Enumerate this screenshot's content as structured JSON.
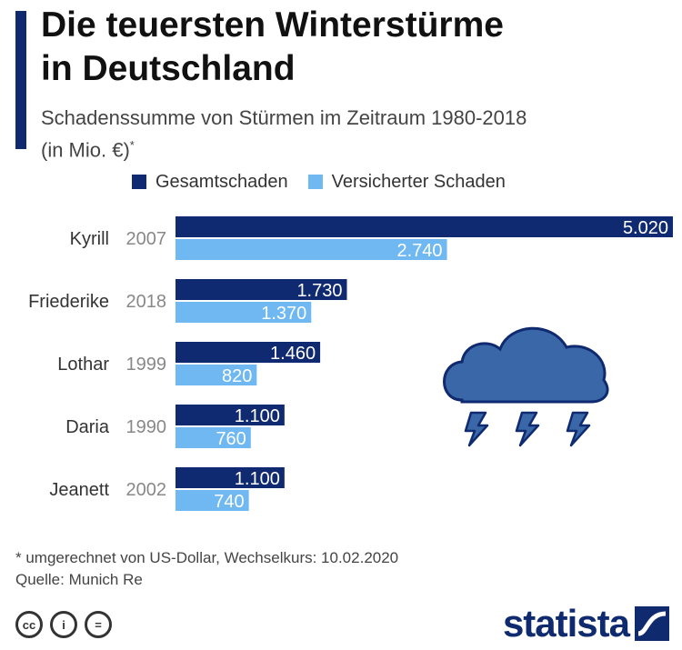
{
  "header": {
    "title_line1": "Die teuersten Winterstürme",
    "title_line2": "in Deutschland",
    "subtitle_line1": "Schadenssumme von Stürmen im Zeitraum 1980-2018",
    "subtitle_line2": "(in Mio. €)",
    "subtitle_mark": "*"
  },
  "colors": {
    "accent": "#0f2a6f",
    "gesamt": "#102a72",
    "versichert": "#6fb8f2",
    "icon_blue": "#3a67a8"
  },
  "icons": [
    "storm-cloud-icon",
    "lightning-icon",
    "cc-icon",
    "by-icon",
    "nd-icon",
    "statista-logo-icon"
  ],
  "chart_data": {
    "type": "bar",
    "orientation": "horizontal",
    "title": "Die teuersten Winterstürme in Deutschland",
    "subtitle": "Schadenssumme von Stürmen im Zeitraum 1980-2018 (in Mio. €)*",
    "categories": [
      "Kyrill",
      "Friederike",
      "Lothar",
      "Daria",
      "Jeanett"
    ],
    "years": [
      "2007",
      "2018",
      "1999",
      "1990",
      "2002"
    ],
    "series": [
      {
        "name": "Gesamtschaden",
        "values": [
          5020,
          1730,
          1460,
          1100,
          1100
        ],
        "labels": [
          "5.020",
          "1.730",
          "1.460",
          "1.100",
          "1.100"
        ]
      },
      {
        "name": "Versicherter Schaden",
        "values": [
          2740,
          1370,
          820,
          760,
          740
        ],
        "labels": [
          "2.740",
          "1.370",
          "820",
          "760",
          "740"
        ]
      }
    ],
    "xlim": [
      0,
      5020
    ],
    "grid": false,
    "legend": "top"
  },
  "footer": {
    "note": "* umgerechnet von US-Dollar, Wechselkurs: 10.02.2020",
    "source": "Quelle: Munich Re",
    "brand": "statista",
    "cc_labels": [
      "cc",
      "i",
      "="
    ]
  }
}
